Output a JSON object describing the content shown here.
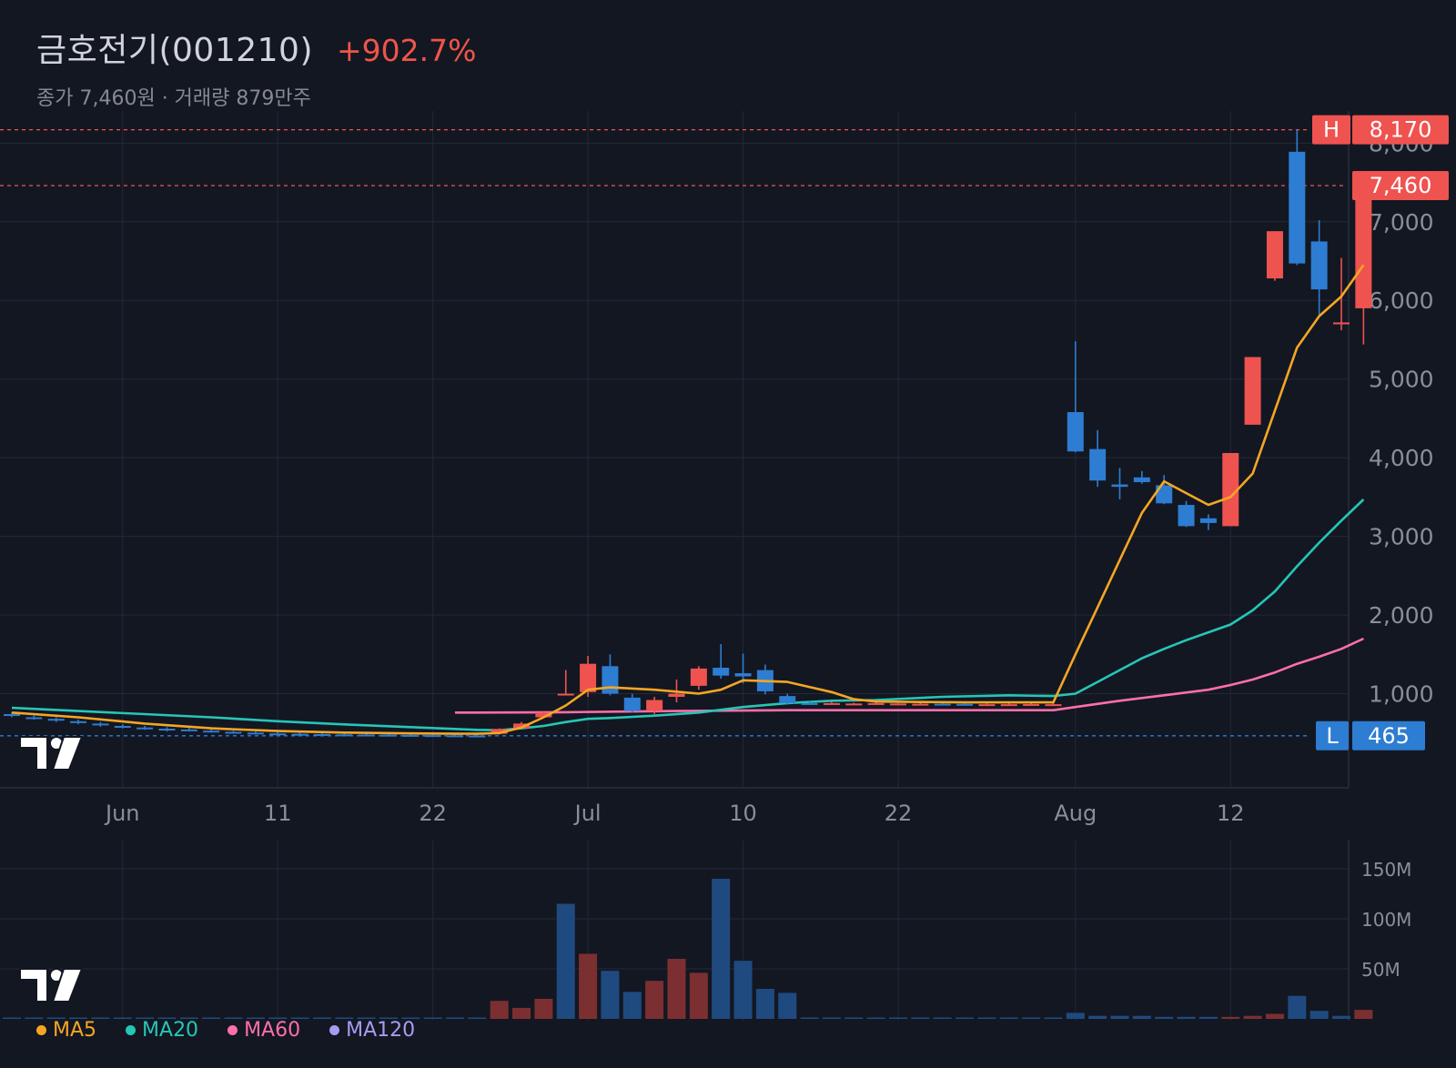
{
  "header": {
    "title": "금호전기(001210)",
    "change": "+902.7%",
    "subtitle": "종가 7,460원 · 거래량 879만주"
  },
  "colors": {
    "background": "#131722",
    "up": "#ef5350",
    "down": "#2d7dd2",
    "ma5": "#f5a623",
    "ma20": "#26c6b7",
    "ma60": "#ff6fa8",
    "ma120": "#a79cf0"
  },
  "legend": [
    {
      "label": "MA5",
      "color": "#f5a623"
    },
    {
      "label": "MA20",
      "color": "#26c6b7"
    },
    {
      "label": "MA60",
      "color": "#ff6fa8"
    },
    {
      "label": "MA120",
      "color": "#a79cf0"
    }
  ],
  "chart_data": [
    {
      "type": "candlestick",
      "price_axis": {
        "ticks": [
          1000,
          2000,
          3000,
          4000,
          5000,
          6000,
          7000,
          8000
        ],
        "tick_labels": [
          "1,000",
          "2,000",
          "3,000",
          "4,000",
          "5,000",
          "6,000",
          "7,000",
          "8,000"
        ]
      },
      "date_axis": {
        "labels": [
          {
            "label": "Jun",
            "index": 5
          },
          {
            "label": "11",
            "index": 12
          },
          {
            "label": "22",
            "index": 19
          },
          {
            "label": "Jul",
            "index": 26
          },
          {
            "label": "10",
            "index": 33
          },
          {
            "label": "22",
            "index": 40
          },
          {
            "label": "Aug",
            "index": 48
          },
          {
            "label": "12",
            "index": 55
          }
        ]
      },
      "markers": {
        "high": {
          "tag": "H",
          "label": "8,170",
          "value": 8170
        },
        "close": {
          "label": "7,460",
          "value": 7460
        },
        "low": {
          "tag": "L",
          "label": "465",
          "value": 465
        }
      },
      "candles": [
        [
          740,
          760,
          700,
          720
        ],
        [
          700,
          720,
          670,
          690
        ],
        [
          680,
          700,
          640,
          660
        ],
        [
          650,
          670,
          610,
          630
        ],
        [
          620,
          640,
          580,
          600
        ],
        [
          590,
          610,
          560,
          580
        ],
        [
          570,
          590,
          540,
          555
        ],
        [
          555,
          575,
          520,
          540
        ],
        [
          545,
          565,
          520,
          530
        ],
        [
          530,
          550,
          505,
          515
        ],
        [
          515,
          530,
          495,
          505
        ],
        [
          505,
          520,
          490,
          498
        ],
        [
          495,
          510,
          480,
          490
        ],
        [
          490,
          505,
          478,
          485
        ],
        [
          486,
          500,
          475,
          482
        ],
        [
          482,
          498,
          472,
          480
        ],
        [
          480,
          494,
          470,
          477
        ],
        [
          478,
          490,
          468,
          474
        ],
        [
          475,
          488,
          466,
          472
        ],
        [
          473,
          486,
          465,
          470
        ],
        [
          470,
          484,
          465,
          468
        ],
        [
          468,
          482,
          465,
          467
        ],
        [
          490,
          560,
          480,
          550
        ],
        [
          560,
          640,
          550,
          620
        ],
        [
          700,
          780,
          690,
          760
        ],
        [
          1000,
          1300,
          980,
          1000
        ],
        [
          1020,
          1480,
          960,
          1380
        ],
        [
          1350,
          1500,
          980,
          1000
        ],
        [
          950,
          1000,
          760,
          780
        ],
        [
          780,
          960,
          740,
          920
        ],
        [
          960,
          1180,
          890,
          1000
        ],
        [
          1100,
          1350,
          1050,
          1320
        ],
        [
          1330,
          1630,
          1190,
          1230
        ],
        [
          1260,
          1510,
          1130,
          1220
        ],
        [
          1300,
          1370,
          990,
          1030
        ],
        [
          970,
          1000,
          860,
          880
        ],
        [
          880,
          900,
          860,
          875
        ],
        [
          870,
          895,
          860,
          880
        ],
        [
          875,
          885,
          865,
          875
        ],
        [
          872,
          890,
          860,
          880
        ],
        [
          875,
          880,
          870,
          875
        ],
        [
          872,
          882,
          866,
          872
        ],
        [
          872,
          878,
          866,
          870
        ],
        [
          870,
          876,
          866,
          868
        ],
        [
          866,
          876,
          862,
          866
        ],
        [
          866,
          876,
          860,
          866
        ],
        [
          866,
          878,
          860,
          868
        ],
        [
          866,
          878,
          860,
          866
        ],
        [
          4580,
          5480,
          4070,
          4080
        ],
        [
          4110,
          4350,
          3630,
          3710
        ],
        [
          3660,
          3870,
          3470,
          3630
        ],
        [
          3750,
          3830,
          3670,
          3690
        ],
        [
          3650,
          3780,
          3410,
          3420
        ],
        [
          3400,
          3450,
          3120,
          3130
        ],
        [
          3230,
          3280,
          3080,
          3170
        ],
        [
          3130,
          4060,
          3130,
          4060
        ],
        [
          4420,
          5280,
          4420,
          5280
        ],
        [
          6280,
          6880,
          6250,
          6880
        ],
        [
          7890,
          8170,
          6450,
          6470
        ],
        [
          6750,
          7020,
          5820,
          6140
        ],
        [
          5720,
          6540,
          5620,
          5720
        ],
        [
          5900,
          7460,
          5440,
          7460
        ]
      ],
      "ma5": [
        [
          0,
          760
        ],
        [
          3,
          700
        ],
        [
          6,
          620
        ],
        [
          9,
          560
        ],
        [
          12,
          525
        ],
        [
          15,
          505
        ],
        [
          18,
          495
        ],
        [
          21,
          490
        ],
        [
          22,
          500
        ],
        [
          23,
          570
        ],
        [
          24,
          700
        ],
        [
          25,
          850
        ],
        [
          26,
          1050
        ],
        [
          27,
          1080
        ],
        [
          29,
          1050
        ],
        [
          31,
          1000
        ],
        [
          32,
          1050
        ],
        [
          33,
          1170
        ],
        [
          35,
          1150
        ],
        [
          37,
          1020
        ],
        [
          38,
          930
        ],
        [
          39,
          900
        ],
        [
          43,
          890
        ],
        [
          47,
          890
        ],
        [
          48,
          1500
        ],
        [
          49,
          2100
        ],
        [
          50,
          2700
        ],
        [
          51,
          3300
        ],
        [
          52,
          3700
        ],
        [
          53,
          3550
        ],
        [
          54,
          3400
        ],
        [
          55,
          3500
        ],
        [
          56,
          3800
        ],
        [
          57,
          4600
        ],
        [
          58,
          5400
        ],
        [
          59,
          5800
        ],
        [
          60,
          6050
        ],
        [
          61,
          6450
        ]
      ],
      "ma20": [
        [
          0,
          820
        ],
        [
          3,
          780
        ],
        [
          6,
          740
        ],
        [
          9,
          700
        ],
        [
          12,
          650
        ],
        [
          15,
          610
        ],
        [
          18,
          575
        ],
        [
          21,
          540
        ],
        [
          22,
          535
        ],
        [
          23,
          560
        ],
        [
          24,
          590
        ],
        [
          25,
          640
        ],
        [
          26,
          680
        ],
        [
          27,
          690
        ],
        [
          29,
          720
        ],
        [
          31,
          760
        ],
        [
          33,
          830
        ],
        [
          35,
          880
        ],
        [
          37,
          910
        ],
        [
          39,
          920
        ],
        [
          42,
          960
        ],
        [
          45,
          980
        ],
        [
          47,
          970
        ],
        [
          48,
          1000
        ],
        [
          49,
          1150
        ],
        [
          50,
          1300
        ],
        [
          51,
          1450
        ],
        [
          52,
          1570
        ],
        [
          53,
          1680
        ],
        [
          54,
          1780
        ],
        [
          55,
          1880
        ],
        [
          56,
          2060
        ],
        [
          57,
          2300
        ],
        [
          58,
          2620
        ],
        [
          59,
          2920
        ],
        [
          60,
          3200
        ],
        [
          61,
          3470
        ]
      ],
      "ma60": [
        [
          20,
          760
        ],
        [
          21,
          760
        ],
        [
          25,
          765
        ],
        [
          30,
          780
        ],
        [
          35,
          790
        ],
        [
          40,
          790
        ],
        [
          45,
          790
        ],
        [
          47,
          790
        ],
        [
          48,
          830
        ],
        [
          50,
          910
        ],
        [
          52,
          980
        ],
        [
          54,
          1050
        ],
        [
          55,
          1110
        ],
        [
          56,
          1180
        ],
        [
          57,
          1270
        ],
        [
          58,
          1380
        ],
        [
          59,
          1470
        ],
        [
          60,
          1570
        ],
        [
          61,
          1700
        ]
      ]
    },
    {
      "type": "bar",
      "title": "volume",
      "axis": {
        "ticks": [
          50,
          100,
          150
        ],
        "tick_labels": [
          "50M",
          "100M",
          "150M"
        ],
        "unit": "M"
      },
      "values": [
        1,
        1,
        1,
        1,
        1,
        1,
        1,
        1,
        1,
        1,
        1,
        1,
        1,
        1,
        1,
        1,
        1,
        1,
        1,
        1,
        1,
        1,
        18,
        11,
        20,
        115,
        65,
        48,
        27,
        38,
        60,
        46,
        140,
        58,
        30,
        26,
        1,
        1,
        1,
        1,
        1,
        1,
        1,
        1,
        1,
        1,
        1,
        1,
        6,
        3,
        3,
        3,
        2,
        2,
        2,
        2,
        3,
        5,
        23,
        8,
        3,
        9
      ],
      "up": [
        false,
        false,
        false,
        false,
        false,
        false,
        false,
        false,
        false,
        false,
        false,
        false,
        false,
        false,
        false,
        false,
        false,
        false,
        false,
        false,
        false,
        false,
        true,
        true,
        true,
        false,
        true,
        false,
        false,
        true,
        true,
        true,
        false,
        false,
        false,
        false,
        false,
        false,
        false,
        false,
        false,
        false,
        false,
        false,
        false,
        false,
        false,
        false,
        false,
        false,
        false,
        false,
        false,
        false,
        false,
        true,
        true,
        true,
        false,
        false,
        false,
        true
      ]
    }
  ]
}
